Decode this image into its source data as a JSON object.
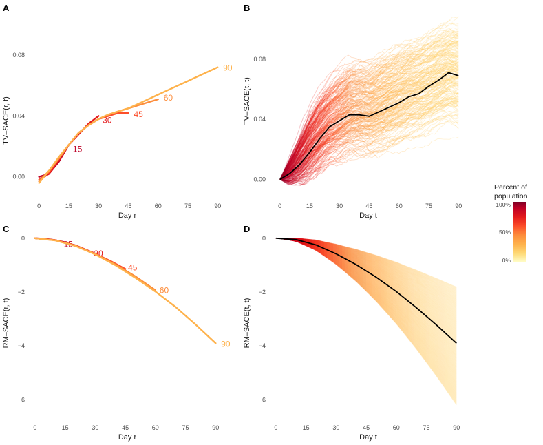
{
  "colors": {
    "c100": "#800026",
    "c85": "#bd0026",
    "c70": "#e31a1c",
    "c55": "#fc4e2a",
    "c40": "#fd8d3c",
    "c25": "#feb24c",
    "c10": "#fed976",
    "c0": "#ffffcc",
    "mean_line": "#000000"
  },
  "legend": {
    "title_line1": "Percent of",
    "title_line2": "population",
    "ticks": [
      "100%",
      "50%",
      "0%"
    ]
  },
  "chart_data": [
    {
      "panel": "A",
      "type": "line",
      "xlabel": "Day r",
      "ylabel": "TV–SACE(r, t)",
      "xlim": [
        -3,
        92
      ],
      "ylim": [
        -0.006,
        0.08
      ],
      "xticks": [
        0,
        15,
        30,
        45,
        60,
        75,
        90
      ],
      "yticks": [
        0.0,
        0.04,
        0.08
      ],
      "ytick_labels": [
        "0.00",
        "0.04",
        "0.08"
      ],
      "series": [
        {
          "name": "15",
          "label": "15",
          "x": [
            0,
            5,
            10,
            15
          ],
          "y": [
            0.0,
            0.002,
            0.01,
            0.021
          ]
        },
        {
          "name": "30",
          "label": "30",
          "x": [
            0,
            5,
            10,
            15,
            20,
            25,
            30
          ],
          "y": [
            -0.002,
            0.002,
            0.011,
            0.021,
            0.028,
            0.035,
            0.04
          ]
        },
        {
          "name": "45",
          "label": "45",
          "x": [
            0,
            5,
            10,
            15,
            20,
            25,
            30,
            35,
            40,
            45
          ],
          "y": [
            -0.002,
            0.003,
            0.012,
            0.021,
            0.029,
            0.034,
            0.038,
            0.04,
            0.042,
            0.042
          ]
        },
        {
          "name": "60",
          "label": "60",
          "x": [
            0,
            5,
            10,
            15,
            20,
            25,
            30,
            35,
            40,
            45,
            50,
            55,
            60
          ],
          "y": [
            -0.003,
            0.004,
            0.012,
            0.021,
            0.029,
            0.034,
            0.038,
            0.041,
            0.043,
            0.045,
            0.047,
            0.049,
            0.051
          ]
        },
        {
          "name": "90",
          "label": "90",
          "x": [
            0,
            5,
            10,
            15,
            20,
            25,
            30,
            35,
            40,
            45,
            50,
            55,
            60,
            65,
            70,
            75,
            80,
            85,
            90
          ],
          "y": [
            -0.004,
            0.004,
            0.013,
            0.021,
            0.029,
            0.034,
            0.038,
            0.041,
            0.043,
            0.045,
            0.048,
            0.051,
            0.054,
            0.057,
            0.06,
            0.063,
            0.066,
            0.069,
            0.072
          ]
        }
      ]
    },
    {
      "panel": "B",
      "type": "line",
      "xlabel": "Day t",
      "ylabel": "TV–SACE(t, t)",
      "xlim": [
        -3,
        92
      ],
      "ylim": [
        -0.008,
        0.112
      ],
      "xticks": [
        0,
        15,
        30,
        45,
        60,
        75,
        90
      ],
      "yticks": [
        0.0,
        0.04,
        0.08
      ],
      "ytick_labels": [
        "0.00",
        "0.04",
        "0.08"
      ],
      "mean": {
        "x": [
          0,
          5,
          10,
          15,
          20,
          25,
          30,
          35,
          40,
          45,
          50,
          55,
          60,
          65,
          70,
          75,
          80,
          85,
          90
        ],
        "y": [
          0.0,
          0.004,
          0.01,
          0.018,
          0.027,
          0.035,
          0.039,
          0.043,
          0.043,
          0.042,
          0.045,
          0.048,
          0.051,
          0.055,
          0.057,
          0.062,
          0.066,
          0.071,
          0.069
        ]
      },
      "band_top": [
        0.0,
        0.018,
        0.036,
        0.052,
        0.064,
        0.072,
        0.078,
        0.084,
        0.086,
        0.086,
        0.089,
        0.092,
        0.095,
        0.097,
        0.099,
        0.101,
        0.104,
        0.106,
        0.108
      ],
      "band_bottom": [
        0.0,
        -0.006,
        -0.005,
        -0.002,
        0.003,
        0.008,
        0.011,
        0.014,
        0.015,
        0.016,
        0.018,
        0.021,
        0.024,
        0.027,
        0.029,
        0.031,
        0.034,
        0.036,
        0.035
      ],
      "n_simulations": 220
    },
    {
      "panel": "C",
      "type": "line",
      "xlabel": "Day r",
      "ylabel": "RM–SACE(r, t)",
      "xlim": [
        -1,
        93
      ],
      "ylim": [
        -6.5,
        0.2
      ],
      "xticks": [
        0,
        15,
        30,
        45,
        60,
        75,
        90
      ],
      "yticks": [
        0,
        -2,
        -4,
        -6
      ],
      "ytick_labels": [
        "0",
        "−2",
        "−4",
        "−6"
      ],
      "series": [
        {
          "name": "15",
          "label": "15",
          "x": [
            0,
            5,
            10,
            15
          ],
          "y": [
            0,
            -0.02,
            -0.07,
            -0.15
          ]
        },
        {
          "name": "30",
          "label": "30",
          "x": [
            0,
            10,
            20,
            30
          ],
          "y": [
            0,
            -0.07,
            -0.26,
            -0.57
          ]
        },
        {
          "name": "45",
          "label": "45",
          "x": [
            0,
            10,
            20,
            30,
            38,
            45
          ],
          "y": [
            0,
            -0.07,
            -0.27,
            -0.58,
            -0.86,
            -1.14
          ]
        },
        {
          "name": "60",
          "label": "60",
          "x": [
            0,
            10,
            20,
            30,
            40,
            50,
            60
          ],
          "y": [
            0,
            -0.08,
            -0.28,
            -0.59,
            -0.97,
            -1.42,
            -1.93
          ]
        },
        {
          "name": "90",
          "label": "90",
          "x": [
            0,
            10,
            20,
            30,
            40,
            50,
            60,
            70,
            80,
            90
          ],
          "y": [
            0,
            -0.08,
            -0.28,
            -0.6,
            -1.0,
            -1.47,
            -1.98,
            -2.55,
            -3.2,
            -3.9
          ]
        }
      ]
    },
    {
      "panel": "D",
      "type": "line",
      "xlabel": "Day t",
      "ylabel": "RM–SACE(t, t)",
      "xlim": [
        -1,
        93
      ],
      "ylim": [
        -6.5,
        0.2
      ],
      "xticks": [
        0,
        15,
        30,
        45,
        60,
        75,
        90
      ],
      "yticks": [
        0,
        -2,
        -4,
        -6
      ],
      "ytick_labels": [
        "0",
        "−2",
        "−4",
        "−6"
      ],
      "mean": {
        "x": [
          0,
          10,
          20,
          30,
          40,
          50,
          60,
          70,
          80,
          90
        ],
        "y": [
          0,
          -0.05,
          -0.25,
          -0.58,
          -0.98,
          -1.45,
          -1.98,
          -2.58,
          -3.22,
          -3.9
        ]
      },
      "n_simulations": 220
    }
  ]
}
